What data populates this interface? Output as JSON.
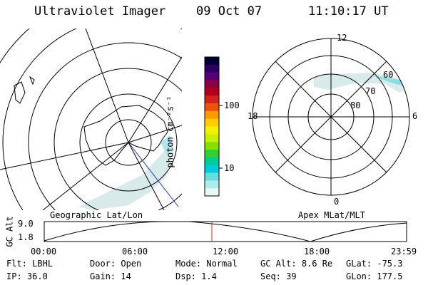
{
  "header": {
    "instrument": "Ultraviolet Imager",
    "date": "09 Oct 07",
    "time": "11:10:17 UT"
  },
  "colorbar": {
    "unit_label": "photon cm⁻²s⁻¹",
    "ticks": [
      "100",
      "10"
    ],
    "colors": [
      "#000033",
      "#2a0066",
      "#5a0077",
      "#8a0044",
      "#b3001a",
      "#d42020",
      "#ee5500",
      "#ff9900",
      "#ffcc00",
      "#f2f200",
      "#c8f000",
      "#88e000",
      "#33d033",
      "#00cc99",
      "#00ccdd",
      "#66dddd",
      "#aaeeee",
      "#e6f7f7"
    ]
  },
  "panels": {
    "left_label": "Geographic Lat/Lon",
    "right_label": "Apex MLat/MLT",
    "mlt_labels": {
      "top": "12",
      "left": "18",
      "right": "6",
      "bottom": "0"
    },
    "mlat_labels": [
      "60",
      "70",
      "80"
    ]
  },
  "altitude_plot": {
    "ylabel": "GC Alt",
    "yticks": [
      "9.0",
      "1.8"
    ],
    "xticks": [
      "00:00",
      "06:00",
      "12:00",
      "18:00",
      "23:59"
    ]
  },
  "status": {
    "row1": [
      {
        "key": "Flt:",
        "value": "LBHL"
      },
      {
        "key": "Door:",
        "value": "Open"
      },
      {
        "key": "Mode:",
        "value": "Normal"
      },
      {
        "key": "GC Alt:",
        "value": "8.6 Re"
      },
      {
        "key": "GLat:",
        "value": "-75.3"
      }
    ],
    "row2": [
      {
        "key": "IP:",
        "value": "36.0"
      },
      {
        "key": "Gain:",
        "value": "14"
      },
      {
        "key": "Dsp:",
        "value": "1.4"
      },
      {
        "key": "Seq:",
        "value": "39"
      },
      {
        "key": "GLon:",
        "value": "177.5"
      }
    ]
  }
}
